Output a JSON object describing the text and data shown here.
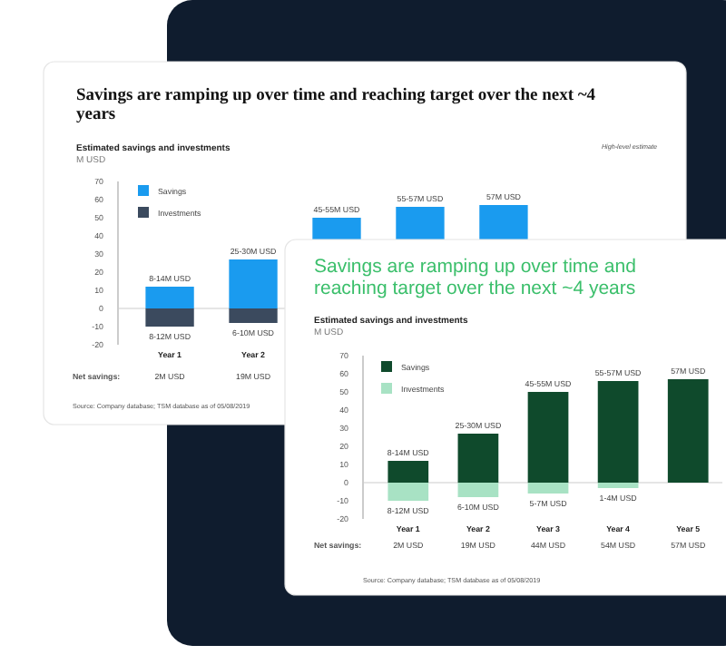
{
  "chart_data": [
    {
      "type": "bar",
      "title": "Savings are ramping up over time and reaching target over the next ~4 years",
      "subtitle": "Estimated savings and investments",
      "ylabel": "M USD",
      "categories": [
        "Year 1",
        "Year 2",
        null,
        null,
        null
      ],
      "stacked": true,
      "legend": "top left",
      "ylim": [
        -20,
        70
      ],
      "yticks": [
        -20,
        -10,
        0,
        10,
        20,
        30,
        40,
        50,
        60,
        70
      ],
      "series": [
        {
          "name": "Savings",
          "color": "#1a9bef",
          "values": [
            12,
            27,
            50,
            56,
            57
          ],
          "value_labels": [
            "8-14M USD",
            "25-30M USD",
            "45-55M USD",
            "55-57M USD",
            "57M USD"
          ]
        },
        {
          "name": "Investments",
          "color": "#3b4a5e",
          "values": [
            -10,
            -8,
            null,
            null,
            null
          ],
          "value_labels": [
            "8-12M USD",
            "6-10M USD",
            null,
            null,
            null
          ]
        }
      ],
      "annotations": [
        "Net savings:",
        "High-level estimate",
        "Source: Company database; TSM database as of 05/08/2019",
        "2M USD",
        "19M USD"
      ]
    },
    {
      "type": "bar",
      "title": "Savings are ramping up over time and reaching target over the next ~4 years",
      "subtitle": "Estimated savings and investments",
      "ylabel": "M USD",
      "categories": [
        "Year 1",
        "Year 2",
        "Year 3",
        "Year 4",
        "Year 5"
      ],
      "stacked": true,
      "legend": "top left",
      "ylim": [
        -20,
        70
      ],
      "yticks": [
        -20,
        -10,
        0,
        10,
        20,
        30,
        40,
        50,
        60,
        70
      ],
      "series": [
        {
          "name": "Savings",
          "color": "#0f4a2c",
          "values": [
            12,
            27,
            50,
            56,
            57
          ],
          "value_labels": [
            "8-14M USD",
            "25-30M USD",
            "45-55M USD",
            "55-57M USD",
            "57M USD"
          ]
        },
        {
          "name": "Investments",
          "color": "#a8e2c4",
          "values": [
            -10,
            -8,
            -6,
            -3,
            null
          ],
          "value_labels": [
            "8-12M USD",
            "6-10M USD",
            "5-7M USD",
            "1-4M USD",
            null
          ]
        }
      ],
      "annotations": [
        "Net savings:",
        "Source: Company database; TSM database as of 05/08/2019",
        "2M USD",
        "19M USD",
        "44M USD",
        "54M USD",
        "57M USD"
      ]
    }
  ]
}
